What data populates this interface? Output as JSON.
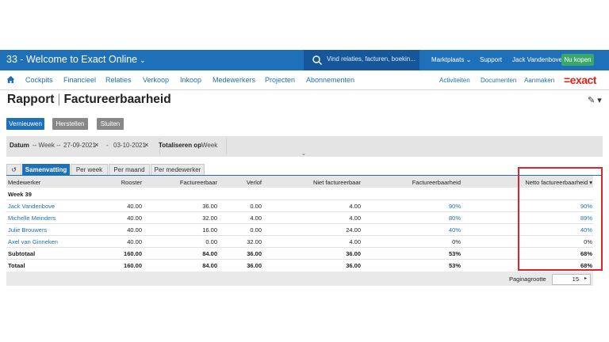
{
  "header": {
    "title": "33 - Welcome to Exact Online",
    "search_placeholder": "Vind relaties, facturen, boekin...",
    "marketplace": "Marktplaats",
    "support": "Support",
    "user": "Jack Vandenbove",
    "buy": "Nu kopen"
  },
  "nav": {
    "items": [
      "Cockpits",
      "Financieel",
      "Relaties",
      "Verkoop",
      "Inkoop",
      "Medewerkers",
      "Projecten",
      "Abonnementen"
    ],
    "right": [
      "Activiteiten",
      "Documenten",
      "Aanmaken"
    ],
    "logo": "=exact"
  },
  "page": {
    "title_part1": "Rapport",
    "title_part2": "Factureerbaarheid"
  },
  "actions": {
    "refresh": "Vernieuwen",
    "restore": "Herstellen",
    "close": "Sluiten"
  },
  "filters": {
    "date_label": "Datum",
    "week_sel": "-- Week --",
    "from": "27-09-2021",
    "dash": "-",
    "to": "03-10-2021",
    "total_label": "Totaliseren op",
    "total_val": "Week"
  },
  "tabs": [
    "Samenvatting",
    "Per week",
    "Per maand",
    "Per medewerker"
  ],
  "table": {
    "headers": [
      "Medewerker",
      "Rooster",
      "Factureerbaar",
      "Verlof",
      "Niet factureerbaar",
      "Factureerbaarheid",
      "Netto factureerbaarheid"
    ],
    "group": "Week 39",
    "rows": [
      [
        "Jack Vandenbove",
        "40.00",
        "36.00",
        "0.00",
        "4.00",
        "90%",
        "90%"
      ],
      [
        "Michelle Meinders",
        "40.00",
        "32.00",
        "4.00",
        "4.00",
        "80%",
        "89%"
      ],
      [
        "Julie Brouwers",
        "40.00",
        "16.00",
        "0.00",
        "24.00",
        "40%",
        "40%"
      ],
      [
        "Axel van Ginneken",
        "40.00",
        "0.00",
        "32.00",
        "4.00",
        "0%",
        "0%"
      ]
    ],
    "subtotal": [
      "Subtotaal",
      "160.00",
      "84.00",
      "36.00",
      "36.00",
      "53%",
      "68%"
    ],
    "total": [
      "Totaal",
      "160.00",
      "84.00",
      "36.00",
      "36.00",
      "53%",
      "68%"
    ]
  },
  "pagination": {
    "label": "Paginagrootte",
    "size": "15"
  },
  "colors": {
    "primary": "#1e70b8",
    "highlight": "#d9262d",
    "logo": "#e2231a"
  }
}
